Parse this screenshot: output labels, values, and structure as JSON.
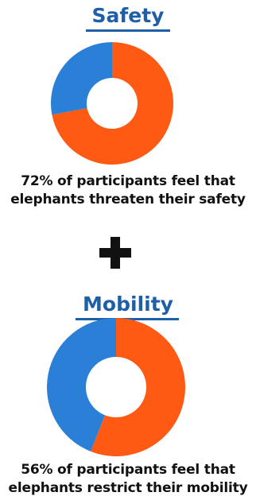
{
  "colors": {
    "title": "#1f5fa8",
    "feel": "#ff5a14",
    "other": "#2a7fd6",
    "text": "#111111"
  },
  "plus_icon": "plus-icon",
  "chart_data": [
    {
      "type": "pie",
      "title": "Safety",
      "caption_line1": "72% of participants feel that",
      "caption_line2": "elephants threaten their safety",
      "values": [
        72,
        28
      ]
    },
    {
      "type": "pie",
      "title": "Mobility",
      "caption_line1": "56% of participants feel that",
      "caption_line2": "elephants restrict their mobility",
      "values": [
        56,
        44
      ]
    }
  ]
}
